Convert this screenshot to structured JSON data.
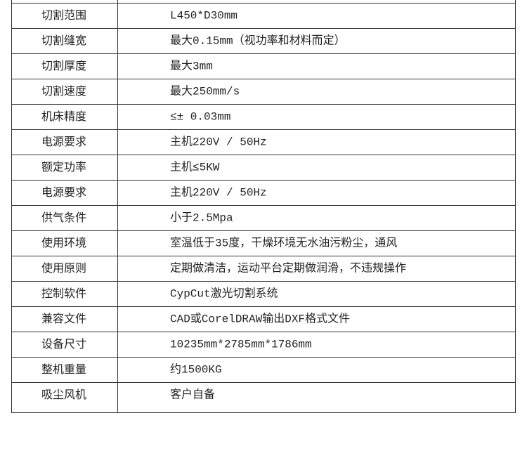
{
  "table": {
    "rows": [
      [
        "切割范围",
        "L450*D30mm"
      ],
      [
        "切割缝宽",
        "最大0.15mm（视功率和材料而定）"
      ],
      [
        "切割厚度",
        "最大3mm"
      ],
      [
        "切割速度",
        "最大250mm/s"
      ],
      [
        "机床精度",
        "≤± 0.03mm"
      ],
      [
        "电源要求",
        "主机220V / 50Hz"
      ],
      [
        "额定功率",
        "主机≤5KW"
      ],
      [
        "电源要求",
        "主机220V / 50Hz"
      ],
      [
        "供气条件",
        "小于2.5Mpa"
      ],
      [
        "使用环境",
        "室温低于35度，干燥环境无水油污粉尘，通风"
      ],
      [
        "使用原则",
        "定期做清洁，运动平台定期做润滑，不违规操作"
      ],
      [
        "控制软件",
        "CypCut激光切割系统"
      ],
      [
        "兼容文件",
        "CAD或CorelDRAW输出DXF格式文件"
      ],
      [
        "设备尺寸",
        "10235mm*2785mm*1786mm"
      ],
      [
        "整机重量",
        "约1500KG"
      ],
      [
        "吸尘风机",
        "客户自备"
      ]
    ]
  }
}
